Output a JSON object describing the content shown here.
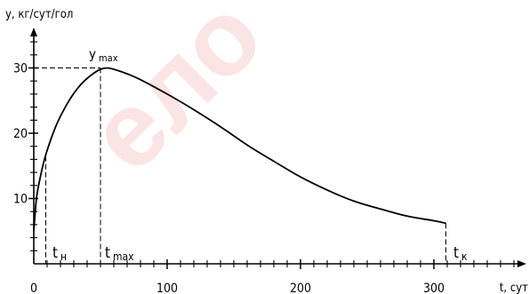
{
  "chart_data": {
    "type": "line",
    "ylabel": "y, кг/сут/гол",
    "xlabel": "t, сут",
    "xlim": [
      0,
      360
    ],
    "ylim": [
      0,
      34
    ],
    "x_ticks": [
      {
        "value": 0,
        "label": "0"
      },
      {
        "value": 100,
        "label": "100"
      },
      {
        "value": 200,
        "label": "200"
      },
      {
        "value": 300,
        "label": "300"
      }
    ],
    "y_ticks": [
      {
        "value": 10,
        "label": "10"
      },
      {
        "value": 20,
        "label": "20"
      },
      {
        "value": 30,
        "label": "30"
      }
    ],
    "series": [
      {
        "x": [
          0,
          2,
          5,
          8,
          12,
          16,
          20,
          25,
          30,
          35,
          40,
          45,
          50,
          55,
          60,
          70,
          80,
          100,
          120,
          140,
          160,
          180,
          200,
          220,
          240,
          260,
          280,
          300,
          309
        ],
        "y": [
          5,
          10,
          13.4,
          16,
          18.6,
          20.8,
          22.6,
          24.5,
          26.1,
          27.4,
          28.4,
          29.2,
          29.8,
          30,
          29.8,
          29.1,
          28.2,
          26,
          23.6,
          21,
          18.2,
          15.7,
          13.3,
          11.3,
          9.6,
          8.4,
          7.3,
          6.6,
          6.2
        ]
      }
    ],
    "annotations": {
      "y_max": {
        "label": "y",
        "sub": "max",
        "x": 50,
        "y": 30
      },
      "t_n": {
        "label": "t",
        "sub": "н",
        "x": 9
      },
      "t_max": {
        "label": "t",
        "sub": "max",
        "x": 50
      },
      "t_k": {
        "label": "t",
        "sub": "к",
        "x": 309
      }
    },
    "minor_tick_step_x": 10,
    "minor_tick_step_y": 2
  },
  "watermark": {
    "text": "ело"
  }
}
